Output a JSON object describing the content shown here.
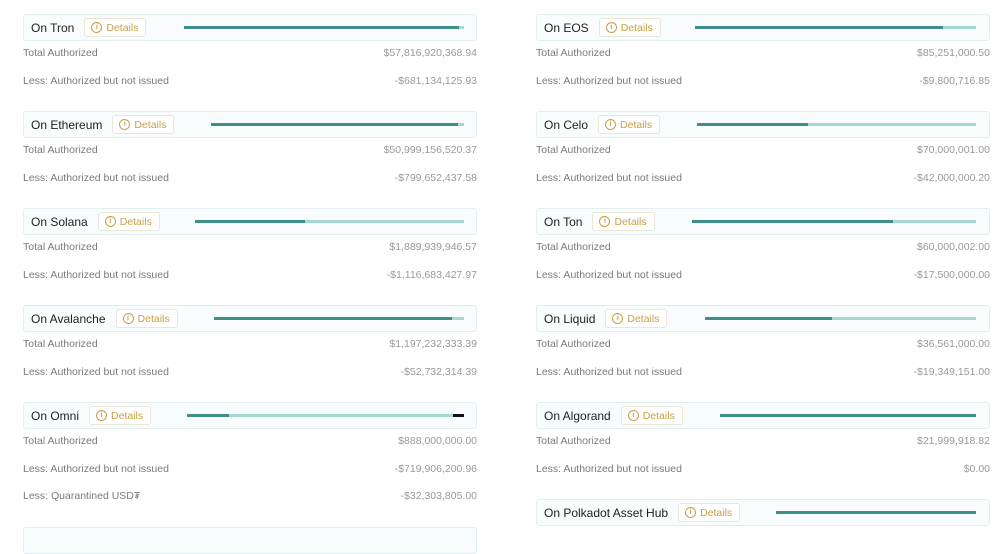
{
  "details_label": "Details",
  "columns": [
    {
      "sections": [
        {
          "title": "On Tron",
          "rows": [
            {
              "label": "Total Authorized",
              "value": "$57,816,920,368.94"
            },
            {
              "label": "Less: Authorized but not issued",
              "value": "-$681,134,125.93"
            }
          ]
        },
        {
          "title": "On Ethereum",
          "rows": [
            {
              "label": "Total Authorized",
              "value": "$50,999,156,520.37"
            },
            {
              "label": "Less: Authorized but not issued",
              "value": "-$799,652,437.58"
            }
          ]
        },
        {
          "title": "On Solana",
          "rows": [
            {
              "label": "Total Authorized",
              "value": "$1,889,939,946.57"
            },
            {
              "label": "Less: Authorized but not issued",
              "value": "-$1,116,683,427.97"
            }
          ]
        },
        {
          "title": "On Avalanche",
          "rows": [
            {
              "label": "Total Authorized",
              "value": "$1,197,232,333.39"
            },
            {
              "label": "Less: Authorized but not issued",
              "value": "-$52,732,314.39"
            }
          ]
        },
        {
          "title": "On Omni",
          "rows": [
            {
              "label": "Total Authorized",
              "value": "$888,000,000.00"
            },
            {
              "label": "Less: Authorized but not issued",
              "value": "-$719,906,200.96"
            },
            {
              "label": "Less: Quarantined USD₮",
              "value": "-$32,303,805.00"
            }
          ]
        }
      ]
    },
    {
      "sections": [
        {
          "title": "On EOS",
          "rows": [
            {
              "label": "Total Authorized",
              "value": "$85,251,000.50"
            },
            {
              "label": "Less: Authorized but not issued",
              "value": "-$9,800,716.85"
            }
          ]
        },
        {
          "title": "On Celo",
          "rows": [
            {
              "label": "Total Authorized",
              "value": "$70,000,001.00"
            },
            {
              "label": "Less: Authorized but not issued",
              "value": "-$42,000,000.20"
            }
          ]
        },
        {
          "title": "On Ton",
          "rows": [
            {
              "label": "Total Authorized",
              "value": "$60,000,002.00"
            },
            {
              "label": "Less: Authorized but not issued",
              "value": "-$17,500,000.00"
            }
          ]
        },
        {
          "title": "On Liquid",
          "rows": [
            {
              "label": "Total Authorized",
              "value": "$36,561,000.00"
            },
            {
              "label": "Less: Authorized but not issued",
              "value": "-$19,349,151.00"
            }
          ]
        },
        {
          "title": "On Algorand",
          "rows": [
            {
              "label": "Total Authorized",
              "value": "$21,999,918.82"
            },
            {
              "label": "Less: Authorized but not issued",
              "value": "$0.00"
            }
          ]
        },
        {
          "title": "On Polkadot Asset Hub",
          "rows": []
        }
      ]
    }
  ]
}
